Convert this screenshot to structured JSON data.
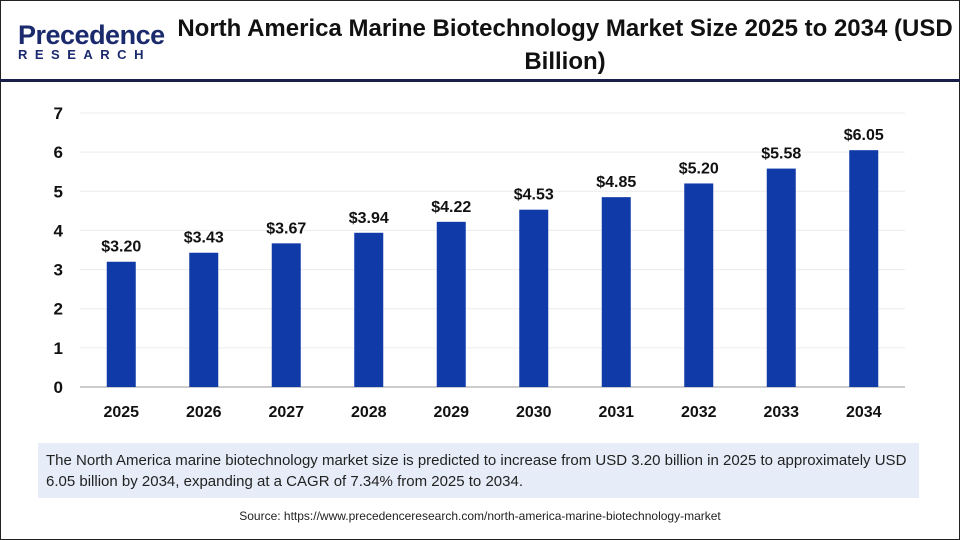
{
  "logo": {
    "line1": "Precedence",
    "line2": "RESEARCH"
  },
  "title": "North America Marine Biotechnology Market Size 2025 to 2034 (USD Billion)",
  "chart_data": {
    "type": "bar",
    "title": "North America Marine Biotechnology Market Size 2025 to 2034 (USD Billion)",
    "categories": [
      "2025",
      "2026",
      "2027",
      "2028",
      "2029",
      "2030",
      "2031",
      "2032",
      "2033",
      "2034"
    ],
    "values": [
      3.2,
      3.43,
      3.67,
      3.94,
      4.22,
      4.53,
      4.85,
      5.2,
      5.58,
      6.05
    ],
    "data_labels": [
      "$3.20",
      "$3.43",
      "$3.67",
      "$3.94",
      "$4.22",
      "$4.53",
      "$4.85",
      "$5.20",
      "$5.58",
      "$6.05"
    ],
    "yticks": [
      "0",
      "1",
      "2",
      "3",
      "4",
      "5",
      "6",
      "7"
    ],
    "ylim": [
      0,
      7
    ],
    "xlabel": "",
    "ylabel": "",
    "grid": true,
    "bar_color": "#0f3aa8"
  },
  "note": "The North America marine biotechnology market size is predicted to increase from USD 3.20 billion in 2025 to approximately USD 6.05 billion by 2034, expanding at a CAGR of 7.34% from 2025 to 2034.",
  "source": "Source: https://www.precedenceresearch.com/north-america-marine-biotechnology-market"
}
